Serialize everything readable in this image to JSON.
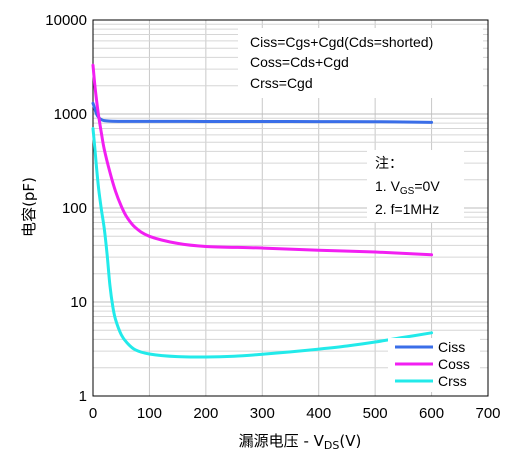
{
  "chart_data": {
    "type": "line",
    "title": "",
    "xlabel": "漏源电压 - V_DS(V)",
    "xlabel_parts": {
      "main": "漏源电压  -  V",
      "sub": "DS",
      "tail": "(V)"
    },
    "ylabel": "电容(pF)",
    "xlim": [
      0,
      700
    ],
    "ylim": [
      1,
      10000
    ],
    "yscale": "log",
    "x_ticks": [
      "0",
      "100",
      "200",
      "300",
      "400",
      "500",
      "600",
      "700"
    ],
    "y_ticks": [
      "1",
      "10",
      "100",
      "1000",
      "10000"
    ],
    "grid": true,
    "legend_position": "bottom-right",
    "annotations": {
      "definitions": [
        "Ciss=Cgs+Cgd(Cds=shorted)",
        "Coss=Cds+Cgd",
        "Crss=Cgd"
      ],
      "conditions_title": "注：",
      "condition_1": {
        "prefix": "1. V",
        "sub": "GS",
        "suffix": "=0V"
      },
      "condition_2": "2. f=1MHz"
    },
    "series": [
      {
        "name": "Ciss",
        "color": "#3a6ee8",
        "points": [
          [
            0,
            1300
          ],
          [
            3,
            1150
          ],
          [
            6,
            1010
          ],
          [
            10,
            920
          ],
          [
            15,
            870
          ],
          [
            20,
            850
          ],
          [
            30,
            840
          ],
          [
            50,
            835
          ],
          [
            100,
            835
          ],
          [
            200,
            833
          ],
          [
            300,
            833
          ],
          [
            400,
            830
          ],
          [
            500,
            828
          ],
          [
            550,
            823
          ],
          [
            600,
            815
          ]
        ]
      },
      {
        "name": "Coss",
        "color": "#f21ff2",
        "points": [
          [
            0,
            3300
          ],
          [
            3,
            2100
          ],
          [
            6,
            1450
          ],
          [
            10,
            950
          ],
          [
            15,
            620
          ],
          [
            20,
            420
          ],
          [
            30,
            240
          ],
          [
            40,
            150
          ],
          [
            50,
            105
          ],
          [
            60,
            80
          ],
          [
            75,
            62
          ],
          [
            100,
            50
          ],
          [
            150,
            42
          ],
          [
            200,
            39
          ],
          [
            300,
            37.5
          ],
          [
            400,
            35.5
          ],
          [
            500,
            34
          ],
          [
            600,
            31.8
          ]
        ]
      },
      {
        "name": "Crss",
        "color": "#22eaea",
        "points": [
          [
            0,
            700
          ],
          [
            3,
            450
          ],
          [
            6,
            280
          ],
          [
            10,
            160
          ],
          [
            15,
            95
          ],
          [
            20,
            60
          ],
          [
            25,
            32
          ],
          [
            30,
            15
          ],
          [
            35,
            9
          ],
          [
            40,
            6.5
          ],
          [
            50,
            4.5
          ],
          [
            60,
            3.7
          ],
          [
            75,
            3.1
          ],
          [
            100,
            2.8
          ],
          [
            150,
            2.62
          ],
          [
            200,
            2.6
          ],
          [
            250,
            2.65
          ],
          [
            300,
            2.78
          ],
          [
            350,
            2.95
          ],
          [
            400,
            3.15
          ],
          [
            450,
            3.4
          ],
          [
            500,
            3.75
          ],
          [
            550,
            4.2
          ],
          [
            600,
            4.7
          ]
        ]
      }
    ]
  }
}
